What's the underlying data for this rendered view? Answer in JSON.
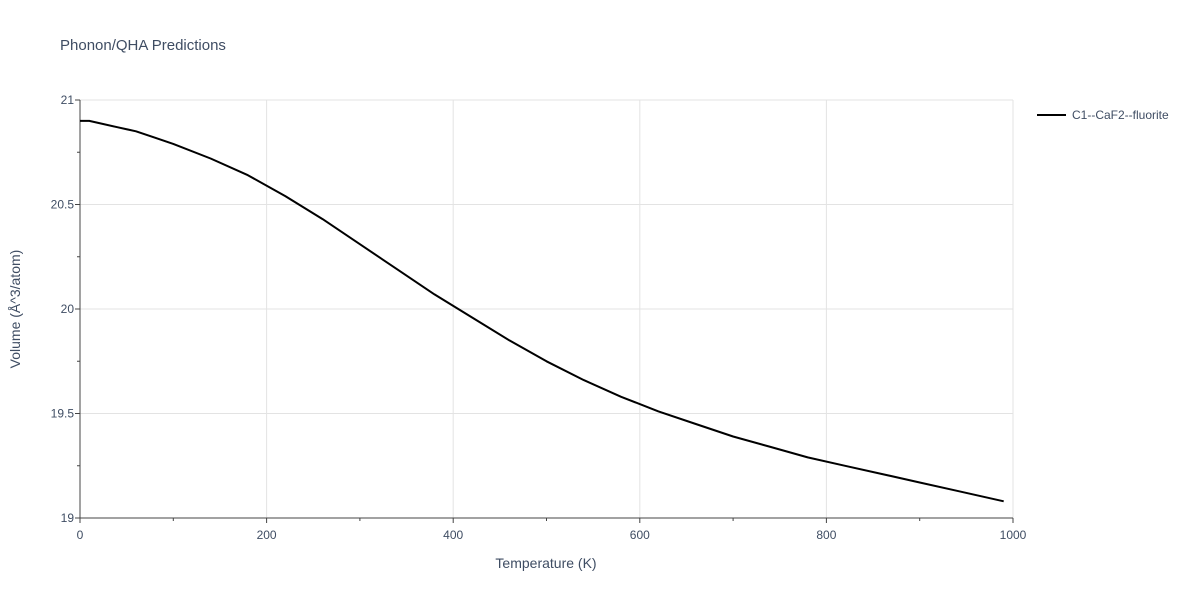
{
  "chart_data": {
    "type": "line",
    "title": "Phonon/QHA Predictions",
    "xlabel": "Temperature (K)",
    "ylabel": "Volume (Å^3/atom)",
    "xlim": [
      0,
      1000
    ],
    "ylim": [
      19,
      21
    ],
    "xticks": [
      0,
      200,
      400,
      600,
      800,
      1000
    ],
    "xtick_labels": [
      "0",
      "200",
      "400",
      "600",
      "800",
      "1000"
    ],
    "yticks": [
      19,
      19.5,
      20,
      20.5,
      21
    ],
    "ytick_labels": [
      "19",
      "19.5",
      "20",
      "20.5",
      "21"
    ],
    "grid": true,
    "legend_position": "top-right",
    "series": [
      {
        "name": "C1--CaF2--fluorite",
        "color": "#000000",
        "x": [
          0,
          10,
          20,
          40,
          60,
          80,
          100,
          140,
          180,
          220,
          260,
          300,
          340,
          380,
          420,
          460,
          500,
          540,
          580,
          620,
          660,
          700,
          740,
          780,
          820,
          860,
          900,
          940,
          990
        ],
        "y": [
          20.9,
          20.9,
          20.89,
          20.87,
          20.85,
          20.82,
          20.79,
          20.72,
          20.64,
          20.54,
          20.43,
          20.31,
          20.19,
          20.07,
          19.96,
          19.85,
          19.75,
          19.66,
          19.58,
          19.51,
          19.45,
          19.39,
          19.34,
          19.29,
          19.25,
          19.21,
          19.17,
          19.13,
          19.08
        ]
      }
    ]
  }
}
